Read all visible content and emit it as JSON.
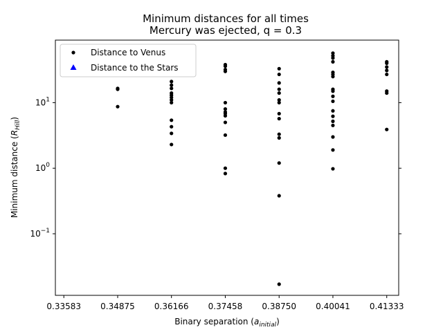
{
  "chart_data": {
    "type": "scatter",
    "title_line1": "Minimum distances for all times",
    "title_line2": "Mercury was ejected, q = 0.3",
    "xlabel_main": "Binary separation (",
    "xlabel_var": "a",
    "xlabel_sub": "initial",
    "xlabel_end": ")",
    "ylabel_main": "Minimum distance (",
    "ylabel_var": "R",
    "ylabel_sub": "Hill",
    "ylabel_end": ")",
    "x_ticks": [
      "0.33583",
      "0.34875",
      "0.36166",
      "0.37458",
      "0.38750",
      "0.40041",
      "0.41333"
    ],
    "x_tick_values": [
      0.33583,
      0.34875,
      0.36166,
      0.37458,
      0.3875,
      0.40041,
      0.41333
    ],
    "xlim": [
      0.3338,
      0.4162
    ],
    "y_scale": "log",
    "ylim": [
      0.0115,
      90
    ],
    "y_ticks": [
      {
        "value": 0.1,
        "base": "10",
        "exp": "−1"
      },
      {
        "value": 1,
        "base": "10",
        "exp": "0"
      },
      {
        "value": 10,
        "base": "10",
        "exp": "1"
      }
    ],
    "legend": {
      "placement": "top-left",
      "entries": [
        {
          "label": "Distance to Venus",
          "marker": "dot",
          "color": "#000000"
        },
        {
          "label": "Distance to the Stars",
          "marker": "triangle",
          "color": "#0000ff"
        }
      ]
    },
    "series": [
      {
        "name": "Distance to Venus",
        "color": "#000000",
        "points": [
          [
            0.34875,
            16.5
          ],
          [
            0.34875,
            16.0
          ],
          [
            0.34875,
            8.7
          ],
          [
            0.36166,
            21.0
          ],
          [
            0.36166,
            18.5
          ],
          [
            0.36166,
            16.5
          ],
          [
            0.36166,
            14.0
          ],
          [
            0.36166,
            13.0
          ],
          [
            0.36166,
            12.0
          ],
          [
            0.36166,
            11.0
          ],
          [
            0.36166,
            10.0
          ],
          [
            0.36166,
            5.4
          ],
          [
            0.36166,
            4.3
          ],
          [
            0.36166,
            3.4
          ],
          [
            0.36166,
            2.3
          ],
          [
            0.37458,
            38.0
          ],
          [
            0.37458,
            36.0
          ],
          [
            0.37458,
            32.0
          ],
          [
            0.37458,
            30.0
          ],
          [
            0.37458,
            10.0
          ],
          [
            0.37458,
            8.0
          ],
          [
            0.37458,
            7.2
          ],
          [
            0.37458,
            6.8
          ],
          [
            0.37458,
            6.3
          ],
          [
            0.37458,
            5.0
          ],
          [
            0.37458,
            3.2
          ],
          [
            0.37458,
            1.0
          ],
          [
            0.37458,
            0.83
          ],
          [
            0.3875,
            33.0
          ],
          [
            0.3875,
            27.0
          ],
          [
            0.3875,
            20.0
          ],
          [
            0.3875,
            16.0
          ],
          [
            0.3875,
            14.0
          ],
          [
            0.3875,
            11.0
          ],
          [
            0.3875,
            10.0
          ],
          [
            0.3875,
            6.8
          ],
          [
            0.3875,
            5.7
          ],
          [
            0.3875,
            3.3
          ],
          [
            0.3875,
            2.9
          ],
          [
            0.3875,
            1.2
          ],
          [
            0.3875,
            0.38
          ],
          [
            0.3875,
            0.017
          ],
          [
            0.40041,
            57.0
          ],
          [
            0.40041,
            52.0
          ],
          [
            0.40041,
            48.0
          ],
          [
            0.40041,
            42.0
          ],
          [
            0.40041,
            29.0
          ],
          [
            0.40041,
            27.0
          ],
          [
            0.40041,
            25.0
          ],
          [
            0.40041,
            16.0
          ],
          [
            0.40041,
            15.0
          ],
          [
            0.40041,
            12.5
          ],
          [
            0.40041,
            10.5
          ],
          [
            0.40041,
            7.5
          ],
          [
            0.40041,
            6.2
          ],
          [
            0.40041,
            5.2
          ],
          [
            0.40041,
            4.5
          ],
          [
            0.40041,
            3.0
          ],
          [
            0.40041,
            1.9
          ],
          [
            0.40041,
            0.98
          ],
          [
            0.41333,
            42.0
          ],
          [
            0.41333,
            40.0
          ],
          [
            0.41333,
            35.0
          ],
          [
            0.41333,
            31.0
          ],
          [
            0.41333,
            27.0
          ],
          [
            0.41333,
            15.0
          ],
          [
            0.41333,
            14.0
          ],
          [
            0.41333,
            3.9
          ]
        ]
      }
    ]
  }
}
